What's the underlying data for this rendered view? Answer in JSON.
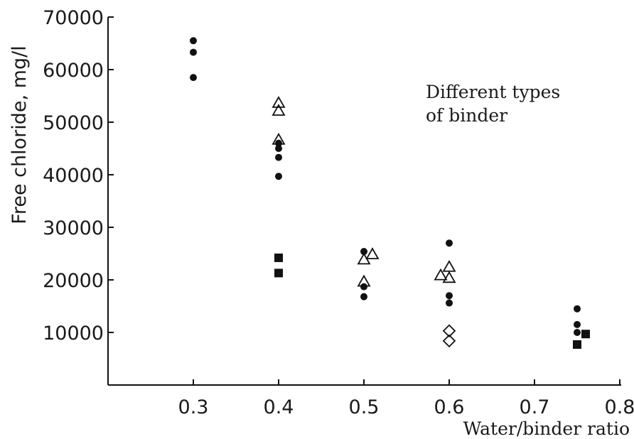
{
  "chart_data": {
    "type": "scatter",
    "xlabel": "Water/binder ratio",
    "ylabel": "Free chloride, mg/l",
    "xlim": [
      0.2,
      0.8
    ],
    "ylim": [
      0,
      70000
    ],
    "x_ticks": [
      0.3,
      0.4,
      0.5,
      0.6,
      0.7,
      0.8
    ],
    "x_tick_labels": [
      "0.3",
      "0.4",
      "0.5",
      "0.6",
      "0.7",
      "0.8"
    ],
    "y_ticks": [
      10000,
      20000,
      30000,
      40000,
      50000,
      60000,
      70000
    ],
    "y_tick_labels": [
      "10000",
      "20000",
      "30000",
      "40000",
      "50000",
      "60000",
      "70000"
    ],
    "grid": false,
    "annotation": {
      "lines": [
        "Different types",
        "of binder"
      ]
    },
    "series": [
      {
        "marker": "filled-circle",
        "color": "#111111",
        "points": [
          [
            0.3,
            65500
          ],
          [
            0.3,
            63300
          ],
          [
            0.3,
            58500
          ],
          [
            0.4,
            46000
          ],
          [
            0.4,
            45000
          ],
          [
            0.4,
            43300
          ],
          [
            0.4,
            39700
          ],
          [
            0.5,
            25400
          ],
          [
            0.5,
            18700
          ],
          [
            0.5,
            16800
          ],
          [
            0.6,
            27000
          ],
          [
            0.6,
            17000
          ],
          [
            0.6,
            15600
          ],
          [
            0.75,
            14500
          ],
          [
            0.75,
            11500
          ],
          [
            0.75,
            10000
          ]
        ]
      },
      {
        "marker": "filled-square",
        "color": "#111111",
        "points": [
          [
            0.4,
            24200
          ],
          [
            0.4,
            21300
          ],
          [
            0.76,
            9700
          ],
          [
            0.75,
            7700
          ]
        ]
      },
      {
        "marker": "open-triangle",
        "color": "#111111",
        "points": [
          [
            0.4,
            53800
          ],
          [
            0.4,
            52300
          ],
          [
            0.4,
            46800
          ],
          [
            0.5,
            24000
          ],
          [
            0.51,
            25000
          ],
          [
            0.5,
            19800
          ],
          [
            0.59,
            21000
          ],
          [
            0.6,
            22600
          ],
          [
            0.6,
            20500
          ]
        ]
      },
      {
        "marker": "open-diamond",
        "color": "#111111",
        "points": [
          [
            0.6,
            10300
          ],
          [
            0.6,
            8400
          ]
        ]
      }
    ]
  }
}
